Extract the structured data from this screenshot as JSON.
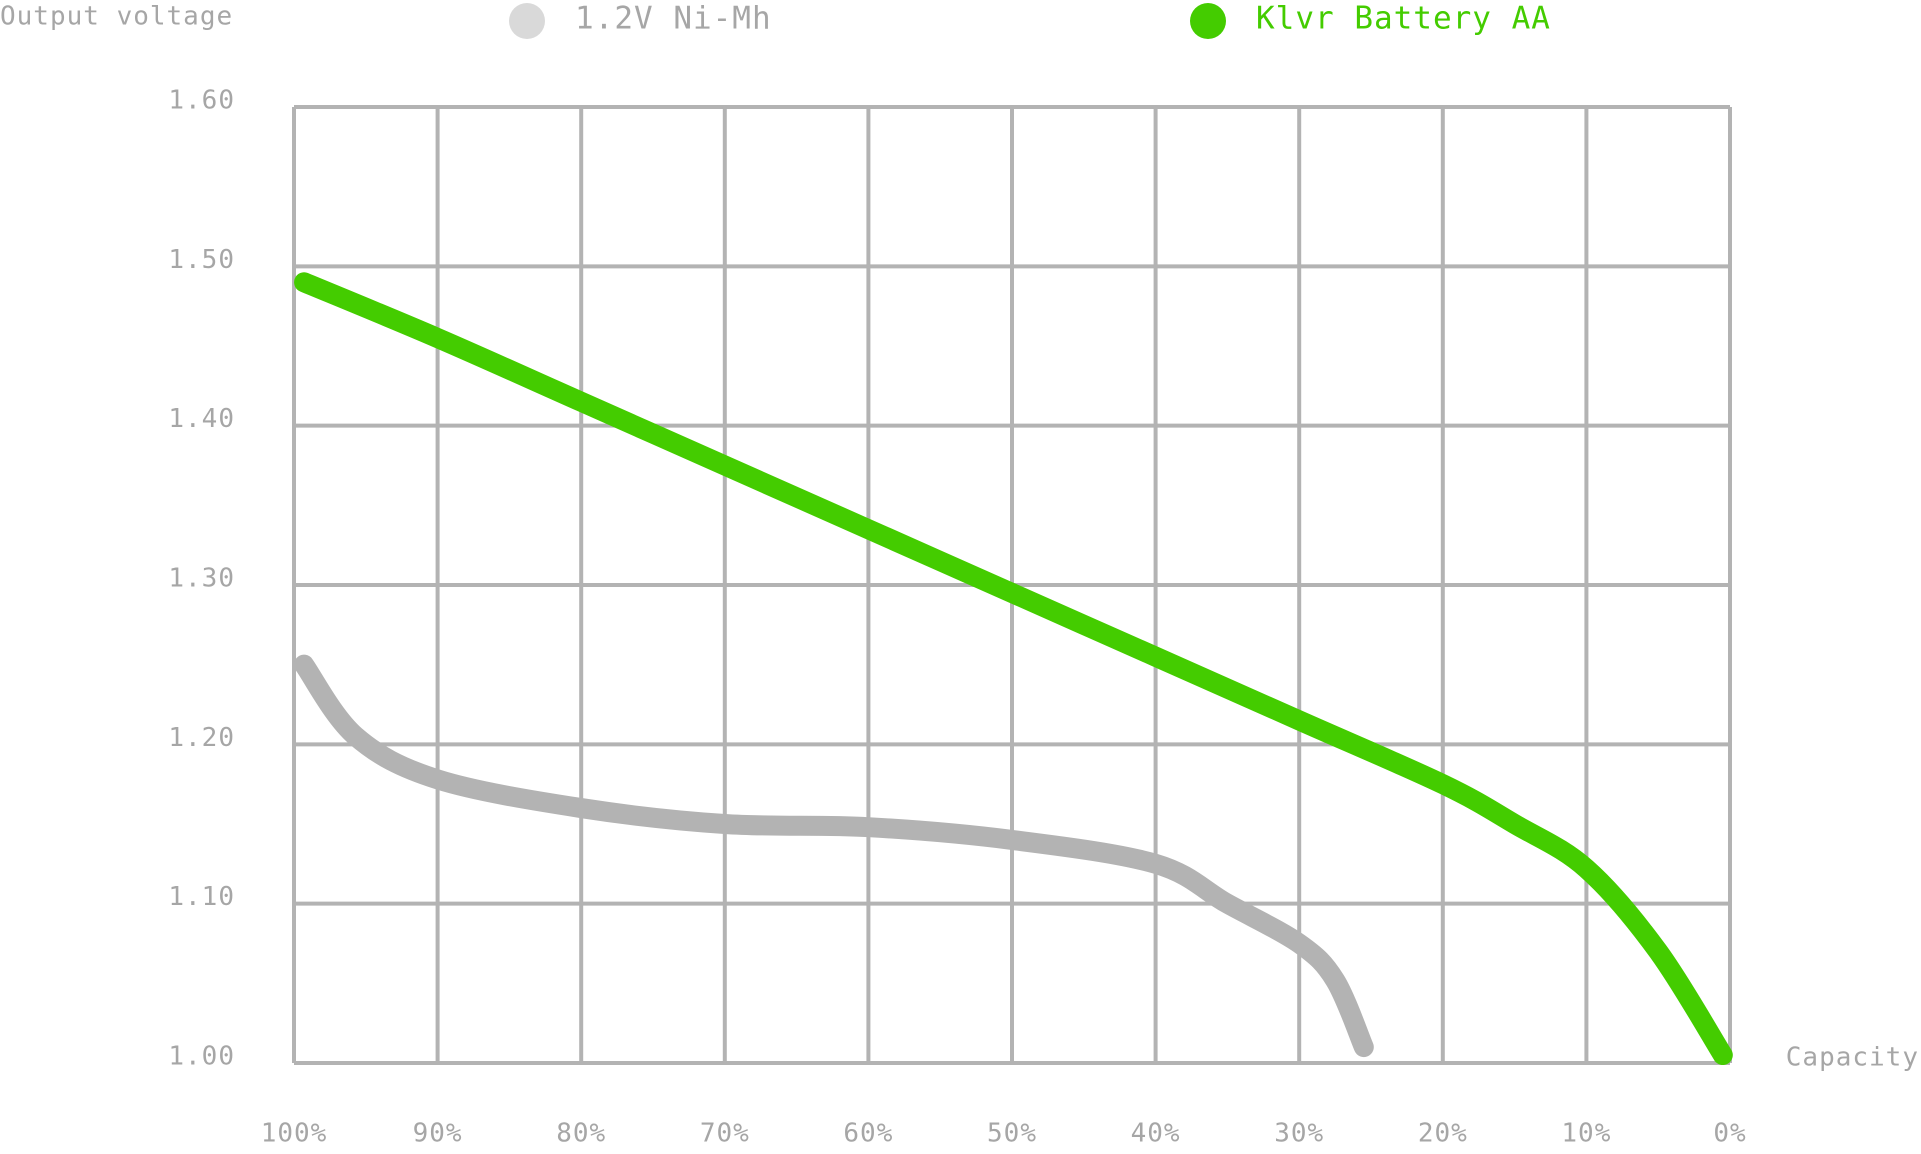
{
  "chart_data": {
    "type": "line",
    "y_label": "Output voltage",
    "x_label": "Capacity",
    "xlim": [
      100,
      0
    ],
    "ylim": [
      1.0,
      1.6
    ],
    "xticks": [
      {
        "value": 100,
        "label": "100%"
      },
      {
        "value": 90,
        "label": "90%"
      },
      {
        "value": 80,
        "label": "80%"
      },
      {
        "value": 70,
        "label": "70%"
      },
      {
        "value": 60,
        "label": "60%"
      },
      {
        "value": 50,
        "label": "50%"
      },
      {
        "value": 40,
        "label": "40%"
      },
      {
        "value": 30,
        "label": "30%"
      },
      {
        "value": 20,
        "label": "20%"
      },
      {
        "value": 10,
        "label": "10%"
      },
      {
        "value": 0,
        "label": "0%"
      }
    ],
    "yticks": [
      {
        "value": 1.0,
        "label": "1.00"
      },
      {
        "value": 1.1,
        "label": "1.10"
      },
      {
        "value": 1.2,
        "label": "1.20"
      },
      {
        "value": 1.3,
        "label": "1.30"
      },
      {
        "value": 1.4,
        "label": "1.40"
      },
      {
        "value": 1.5,
        "label": "1.50"
      },
      {
        "value": 1.6,
        "label": "1.60"
      }
    ],
    "grid": true,
    "series": [
      {
        "name": "1.2V Ni-Mh",
        "color": "#b3b3b3",
        "legend_color": "#d9d9d9",
        "x": [
          99.3,
          95.7,
          90,
          80,
          70,
          60,
          50,
          40,
          35,
          30,
          27.5,
          25.5
        ],
        "values": [
          1.25,
          1.205,
          1.178,
          1.16,
          1.15,
          1.148,
          1.14,
          1.125,
          1.1,
          1.075,
          1.052,
          1.01
        ]
      },
      {
        "name": "Klvr Battery AA",
        "color": "#44cc00",
        "legend_color": "#44cc00",
        "x": [
          99.3,
          90,
          80,
          70,
          60,
          50,
          40,
          30,
          20,
          15,
          10,
          5,
          0.5
        ],
        "values": [
          1.49,
          1.455,
          1.415,
          1.375,
          1.335,
          1.295,
          1.255,
          1.215,
          1.175,
          1.15,
          1.122,
          1.07,
          1.005
        ]
      }
    ]
  }
}
